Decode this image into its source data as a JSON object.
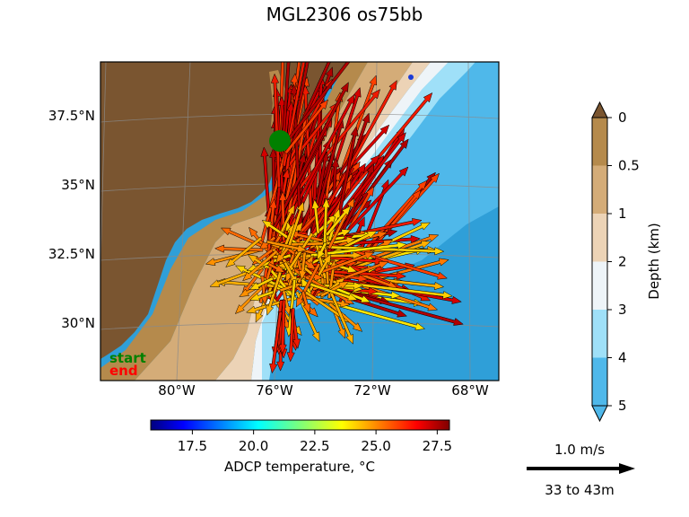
{
  "title": "MGL2306 os75bb",
  "map": {
    "lat_ticks": [
      "37.5°N",
      "35°N",
      "32.5°N",
      "30°N"
    ],
    "lon_ticks": [
      "80°W",
      "76°W",
      "72°W",
      "68°W"
    ],
    "start_label": "start",
    "end_label": "end",
    "start_color": "#008000",
    "end_color": "#ff0000"
  },
  "temp_colorbar": {
    "label": "ADCP temperature, °C",
    "ticks": [
      "17.5",
      "20.0",
      "22.5",
      "25.0",
      "27.5"
    ],
    "range": [
      15.8,
      28.0
    ]
  },
  "depth_colorbar": {
    "label": "Depth (km)",
    "ticks": [
      "0",
      "0.5",
      "1",
      "2",
      "3",
      "4",
      "5"
    ],
    "colors": [
      "#b58a4c",
      "#d4ac78",
      "#ecd3b6",
      "#eef4f8",
      "#9fe0f8",
      "#4fb8ea"
    ],
    "extend_top_color": "#7a5530",
    "extend_bottom_color": "#4fb8ea"
  },
  "scale": {
    "speed_label": "1.0 m/s",
    "depth_range_label": "33 to 43m"
  }
}
